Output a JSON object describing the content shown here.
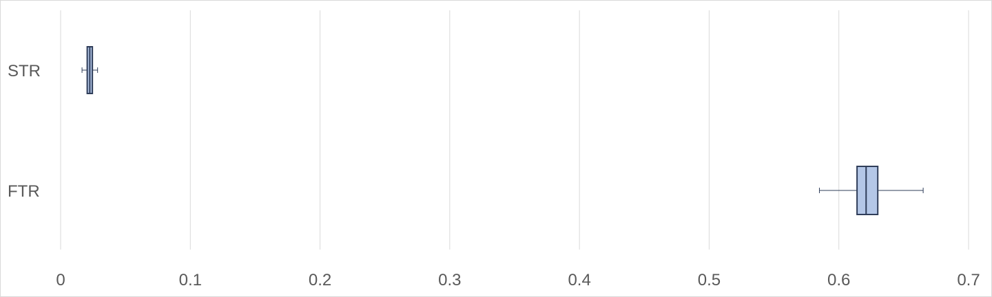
{
  "chart_data": {
    "type": "box",
    "title": "",
    "xlabel": "",
    "ylabel": "",
    "orientation": "horizontal",
    "xlim": [
      0,
      0.7
    ],
    "x_ticks": [
      "0",
      "0.1",
      "0.2",
      "0.3",
      "0.4",
      "0.5",
      "0.6",
      "0.7"
    ],
    "grid": "vertical",
    "legend": "none",
    "categories": [
      "STR",
      "FTR"
    ],
    "series": [
      {
        "category": "STR",
        "min": 0.0165,
        "q1": 0.0205,
        "median": 0.0225,
        "q3": 0.0245,
        "max": 0.0285
      },
      {
        "category": "FTR",
        "min": 0.585,
        "q1": 0.614,
        "median": 0.621,
        "q3": 0.63,
        "max": 0.665
      }
    ],
    "colors": {
      "box_fill": "#b4c7e7",
      "box_stroke": "#2f3d59",
      "grid": "#d9d9d9",
      "text": "#595959"
    }
  }
}
